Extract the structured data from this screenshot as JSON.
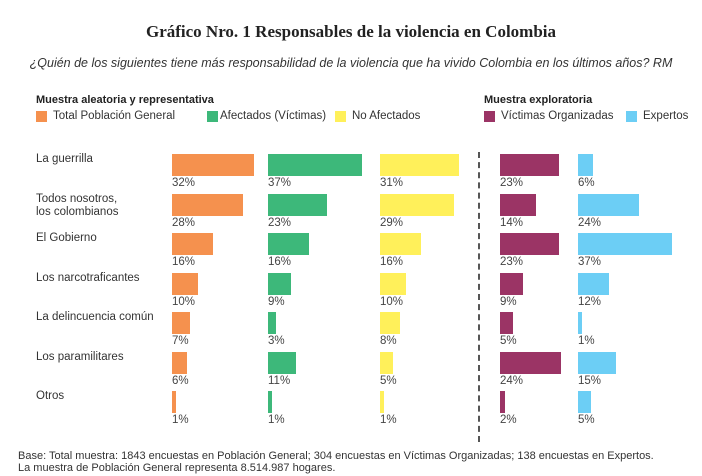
{
  "chart_data": {
    "type": "bar",
    "title": "Gráfico Nro. 1 Responsables de la violencia en Colombia",
    "subtitle": "¿Quién de los siguientes tiene más responsabilidad de la violencia que ha vivido Colombia en los últimos años? RM",
    "groups": [
      {
        "title": "Muestra aleatoria y representativa",
        "series_indices": [
          0,
          1,
          2
        ]
      },
      {
        "title": "Muestra exploratoria",
        "series_indices": [
          3,
          4
        ]
      }
    ],
    "categories": [
      "La guerrilla",
      "Todos nosotros, los colombianos",
      "El Gobierno",
      "Los narcotraficantes",
      "La delincuencia común",
      "Los paramilitares",
      "Otros"
    ],
    "category_lines": [
      [
        "La guerrilla"
      ],
      [
        "Todos nosotros,",
        "los colombianos"
      ],
      [
        "El Gobierno"
      ],
      [
        "Los narcotraficantes"
      ],
      [
        "La delincuencia común"
      ],
      [
        "Los paramilitares"
      ],
      [
        "Otros"
      ]
    ],
    "series": [
      {
        "name": "Total Población General",
        "color": "#F5914E",
        "values": [
          32,
          28,
          16,
          10,
          7,
          6,
          1
        ]
      },
      {
        "name": "Afectados (Víctimas)",
        "color": "#3DB87A",
        "values": [
          37,
          23,
          16,
          9,
          3,
          11,
          1
        ]
      },
      {
        "name": "No Afectados",
        "color": "#FFF05A",
        "values": [
          31,
          29,
          16,
          10,
          8,
          5,
          1
        ]
      },
      {
        "name": "Víctimas Organizadas",
        "color": "#9B3465",
        "values": [
          23,
          14,
          23,
          9,
          5,
          24,
          2
        ]
      },
      {
        "name": "Expertos",
        "color": "#6CCEF5",
        "values": [
          6,
          24,
          37,
          12,
          1,
          15,
          5
        ]
      }
    ],
    "value_suffix": "%",
    "xlabel": "",
    "ylabel": "",
    "xlim": [
      0,
      40
    ],
    "grid": false,
    "legend_position": "top",
    "footnote": [
      "Base: Total muestra: 1843 encuestas en Población General; 304 encuestas en Víctimas Organizadas; 138 encuestas en Expertos.",
      "La muestra de Población General representa 8.514.987 hogares."
    ]
  }
}
